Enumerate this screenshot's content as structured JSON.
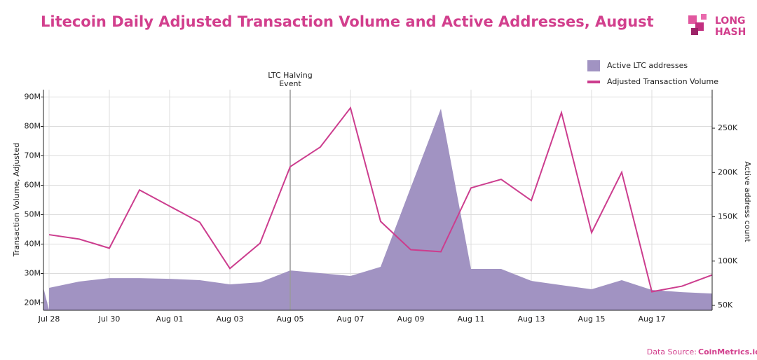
{
  "chart_data": {
    "type": "line-area",
    "title": "Litecoin Daily Adjusted Transaction Volume and Active Addresses, August",
    "logo": [
      "LONG",
      "HASH"
    ],
    "source": {
      "label": "Data Source:",
      "name": "CoinMetrics.io"
    },
    "y_label": "Transaction Volume, Adjusted",
    "y2_label": "Active address count",
    "categories": [
      "Jul 28",
      null,
      "Jul 30",
      null,
      "Aug 01",
      null,
      "Aug 03",
      null,
      "Aug 05",
      null,
      "Aug 07",
      null,
      "Aug 09",
      null,
      "Aug 11",
      null,
      "Aug 13",
      null,
      "Aug 15",
      null,
      "Aug 17",
      null,
      null
    ],
    "series": [
      {
        "name": "Active LTC addresses",
        "kind": "area",
        "axis": "y2",
        "color": "#a193c2",
        "values": [
          69.8,
          76.9,
          80.8,
          80.8,
          80,
          78.5,
          73.7,
          76.1,
          89.5,
          86.4,
          83.2,
          93.5,
          183,
          272,
          91.1,
          91.1,
          77.7,
          72.9,
          68.2,
          78.5,
          67.4,
          65,
          63.4
        ]
      },
      {
        "name": "Adjusted Transaction Volume",
        "kind": "line",
        "axis": "y",
        "color": "#cc3d8e",
        "values": [
          43.2,
          41.7,
          38.6,
          58.4,
          52.9,
          47.4,
          31.7,
          40.3,
          66.3,
          73,
          86.3,
          47.7,
          38.1,
          37.4,
          59.1,
          62,
          54.8,
          84.7,
          43.9,
          64.4,
          23.8,
          25.7,
          29.5
        ]
      }
    ],
    "annotation": {
      "lines": [
        "LTC Halving",
        "Event"
      ],
      "x": "Aug 05"
    },
    "ylim": [
      17.5,
      92.5
    ],
    "yticks": [
      {
        "value": 20,
        "label": "20M"
      },
      {
        "value": 30,
        "label": "30M"
      },
      {
        "value": 40,
        "label": "40M"
      },
      {
        "value": 50,
        "label": "50M"
      },
      {
        "value": 60,
        "label": "60M"
      },
      {
        "value": 70,
        "label": "70M"
      },
      {
        "value": 80,
        "label": "80M"
      },
      {
        "value": 90,
        "label": "90M"
      }
    ],
    "y2lim": [
      44.5,
      293.5
    ],
    "y2ticks": [
      {
        "value": 50,
        "label": "50K"
      },
      {
        "value": 100,
        "label": "100K"
      },
      {
        "value": 150,
        "label": "150K"
      },
      {
        "value": 200,
        "label": "200K"
      },
      {
        "value": 250,
        "label": "250K"
      }
    ],
    "grid": true,
    "legend": "top-right"
  }
}
